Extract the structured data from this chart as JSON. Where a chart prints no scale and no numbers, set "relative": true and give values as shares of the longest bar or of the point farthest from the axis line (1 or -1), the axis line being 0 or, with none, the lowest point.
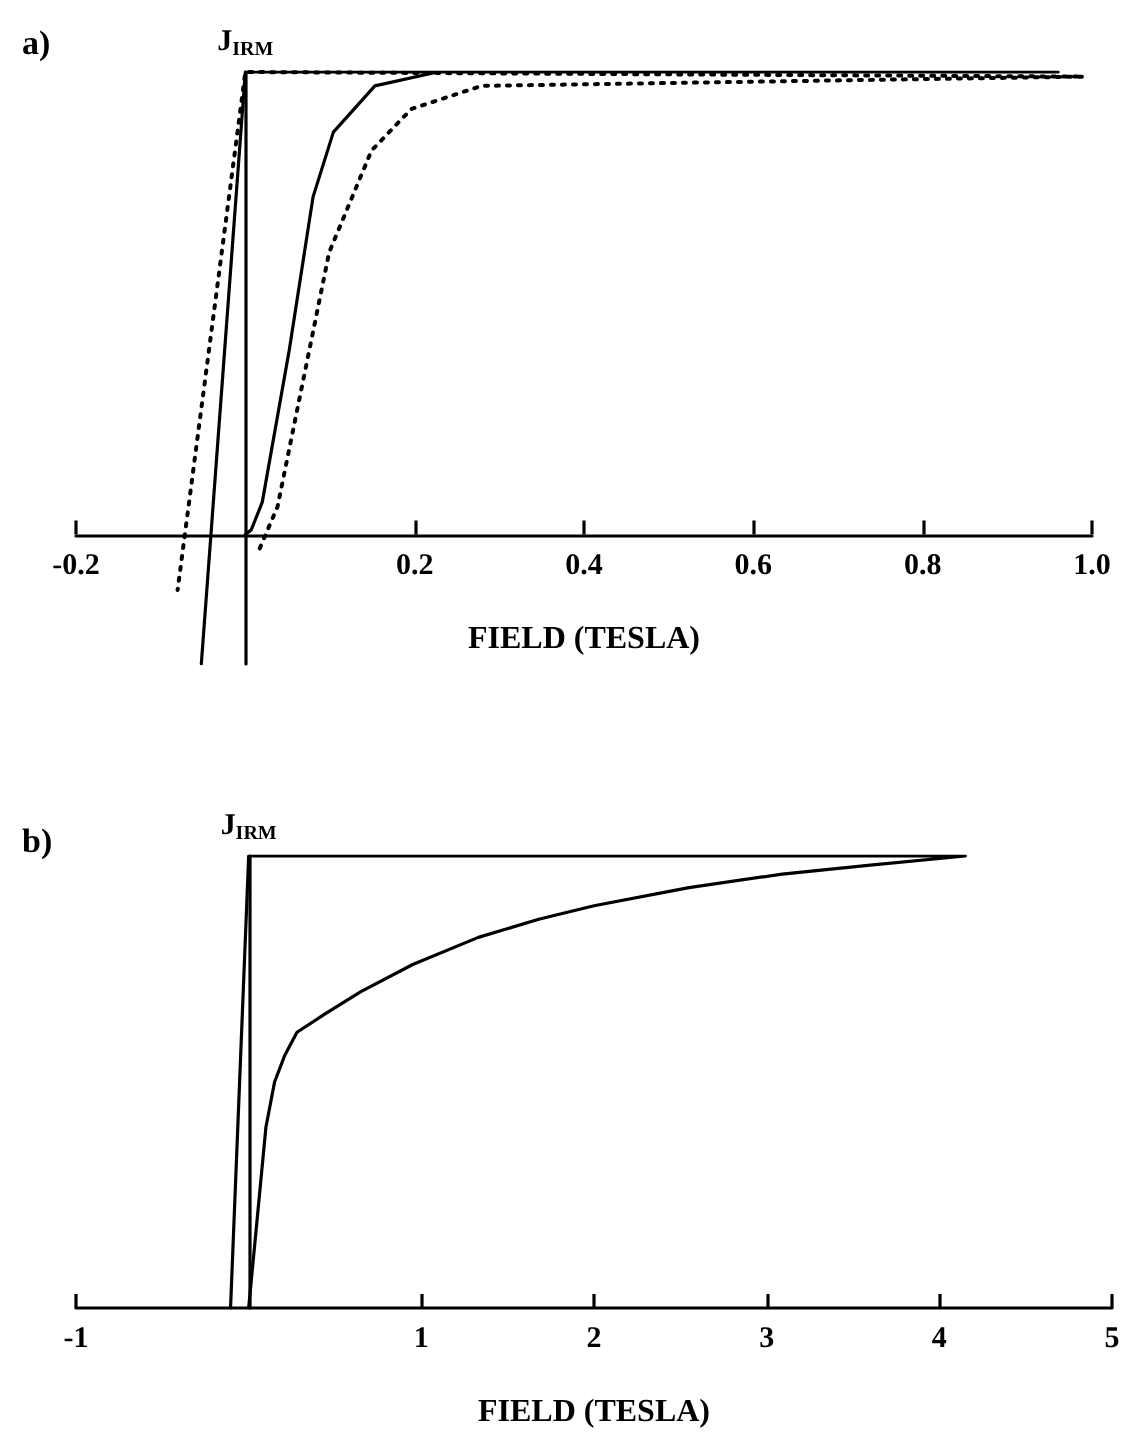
{
  "chart_data": [
    {
      "type": "line",
      "title": "a)",
      "xlabel": "FIELD (TESLA)",
      "ylabel": "J$_{IRM}$",
      "relative": true,
      "marker": "none",
      "grid": false,
      "xlim": [
        -0.2,
        1.0
      ],
      "xticks": [
        -0.2,
        0.2,
        0.4,
        0.6,
        0.8,
        {
          "value": 1.0,
          "label": "1.0"
        }
      ],
      "series": [
        {
          "color": "#000000",
          "line_style": "solid",
          "x": [
            0,
            0.007,
            0.02,
            0.052,
            0.08,
            0.104,
            0.153,
            0.227,
            0.96,
            0,
            -0.052
          ],
          "values": [
            0,
            0.01,
            0.07,
            0.4,
            0.73,
            0.87,
            0.97,
            1.0,
            1.0,
            1.0,
            -0.28
          ]
        },
        {
          "color": "#000000",
          "line_style": "dotted",
          "x": [
            0.017,
            0.038,
            0.099,
            0.149,
            0.196,
            0.279,
            0.99,
            0,
            -0.08
          ],
          "values": [
            -0.03,
            0.06,
            0.61,
            0.83,
            0.92,
            0.97,
            0.99,
            1.0,
            -0.12
          ]
        }
      ]
    },
    {
      "type": "line",
      "title": "b)",
      "xlabel": "FIELD (TESLA)",
      "ylabel": "J$_{IRM}$",
      "relative": true,
      "marker": "none",
      "grid": false,
      "xlim": [
        -1,
        5
      ],
      "xticks": [
        -1,
        1,
        2,
        3,
        4,
        5
      ],
      "series": [
        {
          "color": "#000000",
          "line_style": "solid",
          "x": [
            0,
            0.04,
            0.1,
            0.15,
            0.21,
            0.28,
            0.44,
            0.65,
            0.95,
            1.33,
            1.68,
            2.0,
            2.55,
            3.09,
            3.6,
            4.15,
            0,
            -0.105
          ],
          "values": [
            0,
            0.16,
            0.4,
            0.5,
            0.56,
            0.61,
            0.65,
            0.7,
            0.76,
            0.82,
            0.86,
            0.89,
            0.93,
            0.96,
            0.98,
            1.0,
            1.0,
            0
          ]
        }
      ]
    }
  ]
}
